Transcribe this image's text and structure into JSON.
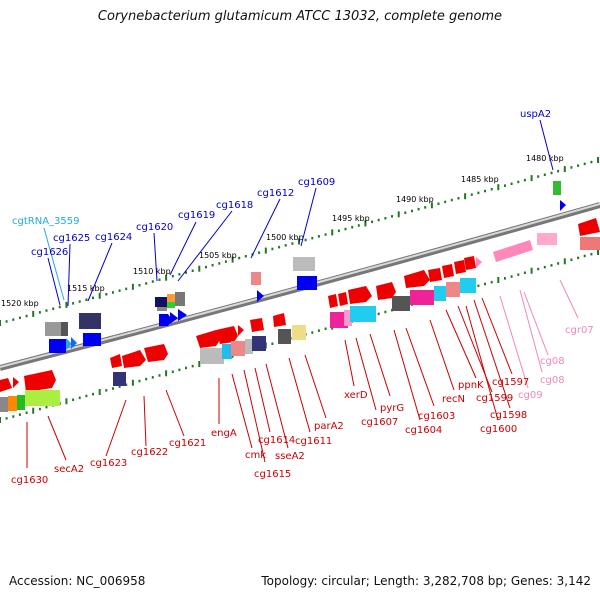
{
  "title": "Corynebacterium glutamicum ATCC 13032, complete genome",
  "footer": {
    "accession": "Accession: NC_006958",
    "topology": "Topology: circular; Length: 3,282,708 bp; Genes: 3,142"
  },
  "colors": {
    "forward": "#ff0000",
    "reverse": "#0000ee",
    "rna": "#22aadd",
    "pink": "#ff88bb",
    "backbone": "#888888",
    "tick": "#227722"
  },
  "kbp_labels": [
    "1480 kbp",
    "1485 kbp",
    "1490 kbp",
    "1495 kbp",
    "1500 kbp",
    "1505 kbp",
    "1510 kbp",
    "1515 kbp",
    "1520 kbp"
  ],
  "gene_labels": {
    "top_blue": [
      "uspA2",
      "cg1609",
      "cg1612",
      "cg1618",
      "cg1619",
      "cg1620",
      "cg1624",
      "cg1625",
      "cg1626"
    ],
    "top_cyan": [
      "cgtRNA_3559"
    ],
    "bottom_red": [
      "cg1630",
      "secA2",
      "cg1623",
      "cg1622",
      "cg1621",
      "engA",
      "cmk",
      "cg1615",
      "cg1614",
      "sseA2",
      "cg1611",
      "parA2",
      "xerD",
      "cg1607",
      "pyrG",
      "cg1604",
      "cg1603",
      "recN",
      "ppnK",
      "cg1599",
      "cg1600",
      "cg1598",
      "cg1597"
    ],
    "bottom_pink": [
      "cg09",
      "cg08",
      "cg08",
      "cgr07"
    ]
  }
}
